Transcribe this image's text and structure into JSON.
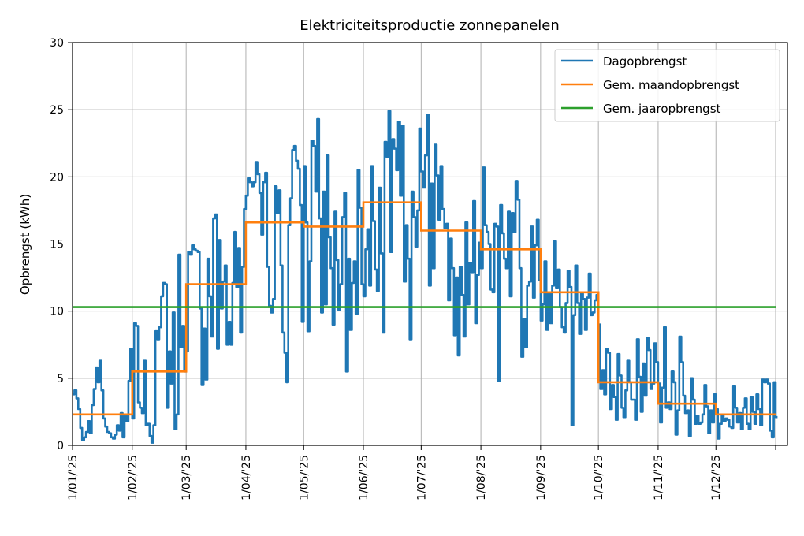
{
  "chart_data": {
    "type": "line",
    "title": "Elektriciteitsproductie zonnepanelen",
    "xlabel": "",
    "ylabel": "Opbrengst (kWh)",
    "ylim": [
      0,
      30
    ],
    "yticks": [
      0,
      5,
      10,
      15,
      20,
      25,
      30
    ],
    "xlim": [
      0,
      365
    ],
    "xticks": [
      {
        "day": 0,
        "label": "1/01/'25"
      },
      {
        "day": 31,
        "label": "1/02/'25"
      },
      {
        "day": 59,
        "label": "1/03/'25"
      },
      {
        "day": 90,
        "label": "1/04/'25"
      },
      {
        "day": 120,
        "label": "1/05/'25"
      },
      {
        "day": 151,
        "label": "1/06/'25"
      },
      {
        "day": 181,
        "label": "1/07/'25"
      },
      {
        "day": 212,
        "label": "1/08/'25"
      },
      {
        "day": 243,
        "label": "1/09/'25"
      },
      {
        "day": 273,
        "label": "1/10/'25"
      },
      {
        "day": 304,
        "label": "1/11/'25"
      },
      {
        "day": 334,
        "label": "1/12/'25"
      }
    ],
    "grid": true,
    "legend_position": "top-right",
    "series": [
      {
        "name": "Dagopbrengst",
        "color": "#1f77b4",
        "style": "steps",
        "x_start_day": 0,
        "values": [
          3.8,
          4.1,
          3.5,
          2.7,
          1.3,
          0.4,
          0.6,
          1.0,
          1.8,
          0.9,
          3.0,
          4.2,
          5.8,
          4.7,
          6.3,
          4.1,
          2.0,
          1.4,
          1.0,
          0.9,
          0.6,
          0.5,
          0.8,
          1.5,
          1.1,
          2.4,
          0.6,
          2.3,
          1.8,
          4.8,
          7.2,
          2.0,
          9.1,
          8.9,
          3.2,
          2.8,
          2.4,
          6.3,
          1.5,
          1.6,
          0.7,
          0.2,
          1.5,
          8.5,
          7.9,
          8.8,
          11.1,
          12.1,
          12.0,
          2.8,
          7.0,
          4.6,
          9.9,
          1.2,
          2.3,
          14.2,
          7.3,
          8.9,
          5.5,
          7.0,
          14.4,
          14.2,
          14.9,
          14.6,
          14.5,
          14.4,
          10.2,
          4.5,
          8.7,
          4.9,
          13.9,
          11.1,
          8.1,
          16.9,
          17.2,
          7.2,
          15.3,
          10.2,
          12.2,
          13.4,
          7.5,
          9.2,
          7.5,
          12.1,
          15.9,
          11.8,
          14.7,
          8.4,
          13.3,
          17.6,
          18.6,
          19.9,
          19.6,
          19.3,
          19.6,
          21.1,
          20.2,
          18.8,
          15.7,
          19.6,
          20.3,
          13.3,
          10.4,
          9.9,
          10.9,
          19.3,
          17.3,
          19.0,
          13.4,
          8.4,
          6.9,
          4.7,
          16.4,
          18.4,
          22.0,
          22.3,
          21.2,
          20.6,
          17.9,
          9.2,
          20.8,
          16.6,
          8.5,
          13.7,
          22.7,
          22.3,
          18.9,
          24.3,
          16.9,
          9.9,
          18.9,
          10.5,
          21.6,
          15.5,
          13.2,
          9.0,
          17.4,
          13.8,
          10.1,
          12.0,
          17.0,
          18.8,
          5.5,
          13.9,
          8.6,
          12.1,
          13.7,
          9.8,
          20.5,
          17.7,
          12.0,
          11.1,
          14.6,
          16.1,
          11.9,
          20.8,
          16.7,
          13.1,
          11.5,
          19.2,
          14.3,
          8.4,
          22.6,
          21.5,
          24.9,
          14.4,
          22.8,
          22.1,
          20.5,
          24.1,
          18.6,
          23.8,
          12.2,
          16.4,
          13.9,
          7.9,
          18.9,
          17.0,
          14.8,
          17.5,
          23.6,
          20.4,
          19.2,
          21.6,
          24.6,
          11.9,
          19.5,
          13.2,
          22.4,
          20.1,
          16.8,
          20.8,
          17.6,
          16.2,
          16.5,
          10.8,
          15.4,
          13.2,
          8.2,
          12.5,
          6.7,
          13.3,
          11.2,
          8.1,
          16.6,
          10.5,
          13.6,
          12.9,
          18.2,
          9.1,
          12.7,
          15.1,
          13.2,
          20.7,
          16.4,
          15.9,
          15.0,
          11.6,
          11.4,
          16.5,
          16.3,
          4.8,
          17.9,
          15.8,
          13.9,
          13.2,
          17.4,
          11.1,
          17.3,
          15.9,
          19.7,
          18.3,
          13.2,
          6.6,
          9.4,
          7.3,
          11.9,
          12.2,
          16.3,
          11.0,
          14.9,
          16.8,
          12.3,
          9.3,
          10.5,
          13.7,
          8.6,
          11.4,
          9.1,
          11.9,
          15.2,
          11.7,
          13.1,
          10.3,
          8.8,
          8.4,
          10.6,
          13.0,
          11.8,
          1.5,
          9.7,
          13.4,
          10.6,
          8.3,
          11.3,
          10.9,
          8.6,
          11.0,
          12.8,
          9.7,
          9.9,
          10.8,
          11.2,
          9.0,
          4.2,
          5.6,
          3.8,
          7.2,
          6.9,
          2.7,
          4.5,
          3.6,
          1.9,
          6.8,
          5.2,
          2.8,
          2.1,
          4.1,
          6.3,
          4.7,
          3.4,
          3.4,
          1.9,
          7.9,
          5.1,
          2.5,
          6.1,
          3.7,
          8.0,
          7.1,
          4.2,
          4.6,
          7.6,
          6.2,
          4.6,
          1.7,
          4.3,
          8.8,
          2.8,
          3.2,
          2.7,
          5.5,
          4.7,
          0.8,
          2.6,
          8.1,
          6.2,
          3.7,
          2.4,
          2.6,
          0.7,
          5.0,
          3.4,
          1.6,
          2.2,
          1.6,
          1.7,
          2.3,
          4.5,
          2.9,
          0.9,
          2.6,
          1.7,
          3.8,
          2.7,
          0.5,
          1.6,
          2.3,
          1.8,
          2.0,
          1.9,
          1.4,
          1.3,
          4.4,
          2.8,
          1.7,
          2.4,
          1.2,
          2.8,
          3.5,
          1.6,
          1.2,
          3.6,
          2.5,
          1.6,
          3.8,
          2.7,
          1.5,
          4.9,
          4.7,
          4.9,
          4.6,
          1.1,
          0.6,
          4.7,
          2.1
        ]
      },
      {
        "name": "Gem. maandopbrengst",
        "color": "#ff7f0e",
        "style": "monthly-steps",
        "months": [
          {
            "start": 0,
            "end": 31,
            "value": 2.3
          },
          {
            "start": 31,
            "end": 59,
            "value": 5.5
          },
          {
            "start": 59,
            "end": 90,
            "value": 12.0
          },
          {
            "start": 90,
            "end": 120,
            "value": 16.6
          },
          {
            "start": 120,
            "end": 151,
            "value": 16.3
          },
          {
            "start": 151,
            "end": 181,
            "value": 18.1
          },
          {
            "start": 181,
            "end": 212,
            "value": 16.0
          },
          {
            "start": 212,
            "end": 243,
            "value": 14.6
          },
          {
            "start": 243,
            "end": 273,
            "value": 11.4
          },
          {
            "start": 273,
            "end": 304,
            "value": 4.7
          },
          {
            "start": 304,
            "end": 334,
            "value": 3.1
          },
          {
            "start": 334,
            "end": 365,
            "value": 2.3
          }
        ]
      },
      {
        "name": "Gem. jaaropbrengst",
        "color": "#2ca02c",
        "style": "constant",
        "value": 10.3
      }
    ]
  }
}
